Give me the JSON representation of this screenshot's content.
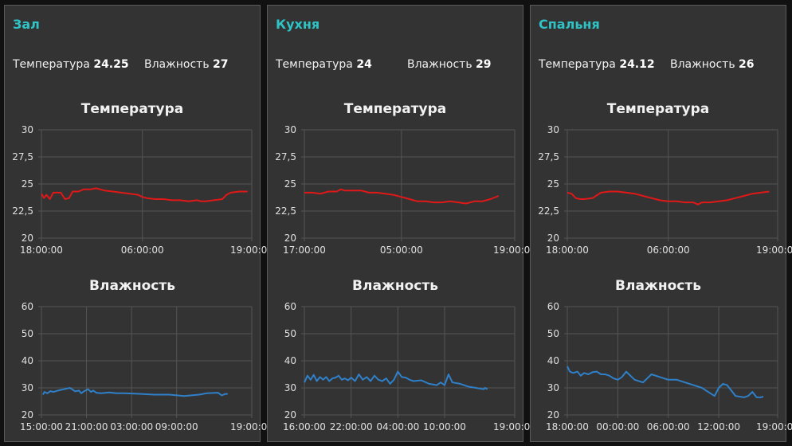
{
  "colors": {
    "accent": "#2fc3c6",
    "temperature_line": "#e01818",
    "humidity_line": "#2f80c8",
    "panel": "#333333",
    "grid": "#555555"
  },
  "panels": [
    {
      "title": "Зал",
      "temperature_label": "Температура",
      "temperature_value": "24.25",
      "humidity_label": "Влажность",
      "humidity_value": "27",
      "temp_chart_title": "Температура",
      "hum_chart_title": "Влажность"
    },
    {
      "title": "Кухня",
      "temperature_label": "Температура",
      "temperature_value": "24",
      "humidity_label": "Влажность",
      "humidity_value": "29",
      "temp_chart_title": "Температура",
      "hum_chart_title": "Влажность"
    },
    {
      "title": "Спальня",
      "temperature_label": "Температура",
      "temperature_value": "24.12",
      "humidity_label": "Влажность",
      "humidity_value": "26",
      "temp_chart_title": "Температура",
      "hum_chart_title": "Влажность"
    }
  ],
  "chart_data": [
    {
      "type": "line",
      "panel": "Зал",
      "title": "Температура",
      "ylim": [
        20,
        30
      ],
      "yticks": [
        "20",
        "22,5",
        "25",
        "27,5",
        "30"
      ],
      "xticks": [
        "18:00:00",
        "06:00:00",
        "19:00:00"
      ],
      "xlim": [
        0,
        25
      ],
      "xtick_values": [
        0,
        12,
        25
      ],
      "series": [
        {
          "color": "#e01818",
          "x": [
            0,
            0.3,
            0.6,
            1,
            1.4,
            1.7,
            2.3,
            2.8,
            3.3,
            3.7,
            4.4,
            5,
            5.8,
            6.5,
            7.5,
            8.5,
            9.5,
            10.5,
            11.5,
            12,
            12.5,
            13.5,
            14.5,
            15.5,
            16.5,
            17.5,
            18.5,
            19,
            19.5,
            20.5,
            21.5,
            22,
            22.5,
            23.5,
            24.5
          ],
          "y": [
            24.1,
            23.7,
            24.0,
            23.6,
            24.2,
            24.2,
            24.2,
            23.6,
            23.7,
            24.3,
            24.3,
            24.5,
            24.5,
            24.6,
            24.4,
            24.3,
            24.2,
            24.1,
            24.0,
            23.8,
            23.7,
            23.6,
            23.6,
            23.5,
            23.5,
            23.4,
            23.5,
            23.4,
            23.4,
            23.5,
            23.6,
            24.0,
            24.2,
            24.3,
            24.3
          ]
        }
      ]
    },
    {
      "type": "line",
      "panel": "Зал",
      "title": "Влажность",
      "ylim": [
        20,
        60
      ],
      "yticks": [
        "20",
        "30",
        "40",
        "50",
        "60"
      ],
      "xticks": [
        "15:00:00",
        "21:00:00",
        "03:00:00",
        "09:00:00",
        "19:00:00"
      ],
      "xlim": [
        0,
        28
      ],
      "xtick_values": [
        0,
        6,
        12,
        18,
        28
      ],
      "series": [
        {
          "color": "#2f80c8",
          "x": [
            0.2,
            0.4,
            0.8,
            1.2,
            1.6,
            2.2,
            3,
            3.8,
            4.5,
            5,
            5.3,
            5.7,
            6.2,
            6.6,
            6.9,
            7.3,
            8,
            9,
            10,
            11,
            13,
            15,
            17,
            19,
            21,
            22,
            23.5,
            24,
            24.4,
            24.8
          ],
          "y": [
            27.5,
            28.5,
            28.0,
            28.8,
            28.5,
            29.0,
            29.5,
            30.0,
            28.7,
            29.0,
            28.0,
            28.8,
            29.5,
            28.5,
            29.0,
            28.2,
            28.0,
            28.3,
            28.0,
            28.0,
            27.8,
            27.5,
            27.5,
            27.0,
            27.5,
            28.0,
            28.2,
            27.2,
            27.7,
            27.8
          ]
        }
      ]
    },
    {
      "type": "line",
      "panel": "Кухня",
      "title": "Температура",
      "ylim": [
        20,
        30
      ],
      "yticks": [
        "20",
        "22,5",
        "25",
        "27,5",
        "30"
      ],
      "xticks": [
        "17:00:00",
        "05:00:00",
        "19:00:00"
      ],
      "xlim": [
        0,
        26
      ],
      "xtick_values": [
        0,
        12,
        26
      ],
      "series": [
        {
          "color": "#e01818",
          "x": [
            0,
            1,
            2,
            3,
            4,
            4.5,
            5,
            6,
            7,
            8,
            9,
            10,
            11,
            12,
            13,
            14,
            15,
            16,
            17,
            18,
            19,
            20,
            21,
            22,
            23,
            24
          ],
          "y": [
            24.2,
            24.2,
            24.1,
            24.3,
            24.3,
            24.5,
            24.4,
            24.4,
            24.4,
            24.2,
            24.2,
            24.1,
            24.0,
            23.8,
            23.6,
            23.4,
            23.4,
            23.3,
            23.3,
            23.4,
            23.3,
            23.2,
            23.4,
            23.4,
            23.6,
            23.9
          ]
        }
      ]
    },
    {
      "type": "line",
      "panel": "Кухня",
      "title": "Влажность",
      "ylim": [
        20,
        60
      ],
      "yticks": [
        "20",
        "30",
        "40",
        "50",
        "60"
      ],
      "xticks": [
        "16:00:00",
        "22:00:00",
        "04:00:00",
        "10:00:00",
        "19:00:00"
      ],
      "xlim": [
        0,
        27
      ],
      "xtick_values": [
        0,
        6,
        12,
        18,
        27
      ],
      "series": [
        {
          "color": "#2f80c8",
          "x": [
            0,
            0.4,
            0.8,
            1.2,
            1.6,
            2,
            2.4,
            2.8,
            3.2,
            3.6,
            4,
            4.4,
            4.8,
            5.2,
            5.6,
            6,
            6.5,
            7,
            7.5,
            8,
            8.5,
            9,
            9.5,
            10,
            10.5,
            11,
            11.5,
            12,
            12.5,
            13,
            13.5,
            14,
            15,
            16,
            17,
            17.5,
            18,
            18.5,
            19,
            20,
            21,
            22,
            23,
            23.2,
            23.5
          ],
          "y": [
            32.0,
            34.5,
            33.0,
            34.8,
            32.5,
            34.0,
            33.0,
            34.0,
            32.5,
            33.5,
            33.8,
            34.5,
            33.0,
            33.5,
            32.8,
            33.8,
            32.5,
            35.0,
            33.0,
            34.0,
            32.5,
            34.5,
            33.0,
            32.5,
            33.5,
            31.5,
            33.0,
            36.0,
            34.0,
            33.8,
            33.0,
            32.5,
            32.8,
            31.5,
            31.0,
            32.0,
            31.0,
            35.0,
            32.0,
            31.5,
            30.5,
            30.0,
            29.5,
            30.0,
            29.5
          ]
        }
      ]
    },
    {
      "type": "line",
      "panel": "Спальня",
      "title": "Температура",
      "ylim": [
        20,
        30
      ],
      "yticks": [
        "20",
        "22,5",
        "25",
        "27,5",
        "30"
      ],
      "xticks": [
        "18:00:00",
        "06:00:00",
        "19:00:00"
      ],
      "xlim": [
        0,
        25
      ],
      "xtick_values": [
        0,
        12,
        25
      ],
      "series": [
        {
          "color": "#e01818",
          "x": [
            0,
            0.5,
            1,
            1.5,
            2,
            3,
            4,
            5,
            6,
            7,
            8,
            9,
            10,
            11,
            12,
            13,
            14,
            15,
            15.5,
            16,
            17,
            18,
            19,
            20,
            21,
            22,
            23,
            24
          ],
          "y": [
            24.2,
            24.1,
            23.7,
            23.6,
            23.6,
            23.7,
            24.2,
            24.3,
            24.3,
            24.2,
            24.1,
            23.9,
            23.7,
            23.5,
            23.4,
            23.4,
            23.3,
            23.3,
            23.1,
            23.3,
            23.3,
            23.4,
            23.5,
            23.7,
            23.9,
            24.1,
            24.2,
            24.3
          ]
        }
      ]
    },
    {
      "type": "line",
      "panel": "Спальня",
      "title": "Влажность",
      "ylim": [
        20,
        60
      ],
      "yticks": [
        "20",
        "30",
        "40",
        "50",
        "60"
      ],
      "xticks": [
        "18:00:00",
        "00:00:00",
        "06:00:00",
        "12:00:00",
        "19:00:00"
      ],
      "xlim": [
        0,
        25
      ],
      "xtick_values": [
        0,
        6,
        12,
        18,
        25
      ],
      "series": [
        {
          "color": "#2f80c8",
          "x": [
            0,
            0.3,
            0.7,
            1.2,
            1.6,
            2,
            2.5,
            3,
            3.5,
            4,
            4.5,
            5,
            5.5,
            6,
            6.5,
            7,
            8,
            9,
            10,
            11,
            12,
            13,
            14,
            15,
            16,
            16.5,
            17,
            17.5,
            18,
            18.5,
            19,
            19.5,
            20,
            21,
            21.5,
            22,
            22.5,
            23,
            23.3
          ],
          "y": [
            38.0,
            36.0,
            35.5,
            36.0,
            34.5,
            35.5,
            35.0,
            35.8,
            36.0,
            35.0,
            35.0,
            34.5,
            33.5,
            33.0,
            34.0,
            36.0,
            33.0,
            32.0,
            35.0,
            34.0,
            33.0,
            33.0,
            32.0,
            31.0,
            30.0,
            29.0,
            28.0,
            27.0,
            30.0,
            31.5,
            31.0,
            29.0,
            27.0,
            26.5,
            27.0,
            28.5,
            26.5,
            26.5,
            26.8
          ]
        }
      ]
    }
  ]
}
